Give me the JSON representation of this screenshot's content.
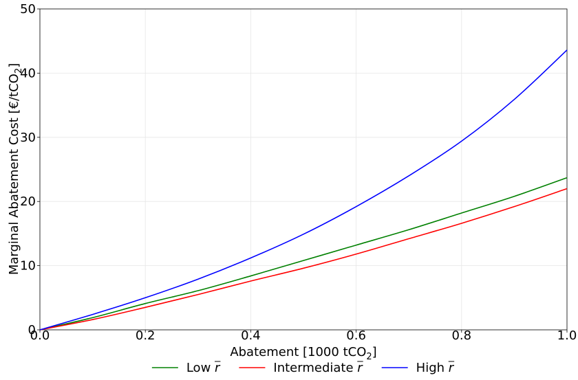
{
  "chart_data": {
    "type": "line",
    "title": "",
    "xlabel": {
      "main": "Abatement [1000 tCO",
      "sub": "2",
      "tail": "]"
    },
    "ylabel": {
      "main": "Marginal Abatement Cost [€/tCO",
      "sub": "2",
      "tail": "]"
    },
    "xlim": [
      0.0,
      1.0
    ],
    "ylim": [
      0,
      50
    ],
    "xticks": [
      0.0,
      0.2,
      0.4,
      0.6,
      0.8,
      1.0
    ],
    "xtick_labels": [
      "0.0",
      "0.2",
      "0.4",
      "0.6",
      "0.8",
      "1.0"
    ],
    "yticks": [
      0,
      10,
      20,
      30,
      40,
      50
    ],
    "ytick_labels": [
      "0",
      "10",
      "20",
      "30",
      "40",
      "50"
    ],
    "grid": true,
    "legend_placement": "bottom-center",
    "x": [
      0.0,
      0.1,
      0.2,
      0.3,
      0.4,
      0.5,
      0.6,
      0.7,
      0.8,
      0.9,
      1.0
    ],
    "series": [
      {
        "name": "Low r̄",
        "legend_main": "Low ",
        "legend_var": "r",
        "color": "#008000",
        "values": [
          0.0,
          1.9,
          4.1,
          6.1,
          8.4,
          10.8,
          13.2,
          15.6,
          18.2,
          20.8,
          23.7
        ]
      },
      {
        "name": "Intermediate r̄",
        "legend_main": "Intermediate ",
        "legend_var": "r",
        "color": "#ff0000",
        "values": [
          0.0,
          1.6,
          3.5,
          5.5,
          7.6,
          9.6,
          11.8,
          14.2,
          16.6,
          19.2,
          22.0
        ]
      },
      {
        "name": "High r̄",
        "legend_main": "High ",
        "legend_var": "r",
        "color": "#0000ff",
        "values": [
          0.0,
          2.4,
          5.0,
          7.9,
          11.2,
          14.9,
          19.2,
          24.0,
          29.4,
          35.9,
          43.6
        ]
      }
    ]
  }
}
